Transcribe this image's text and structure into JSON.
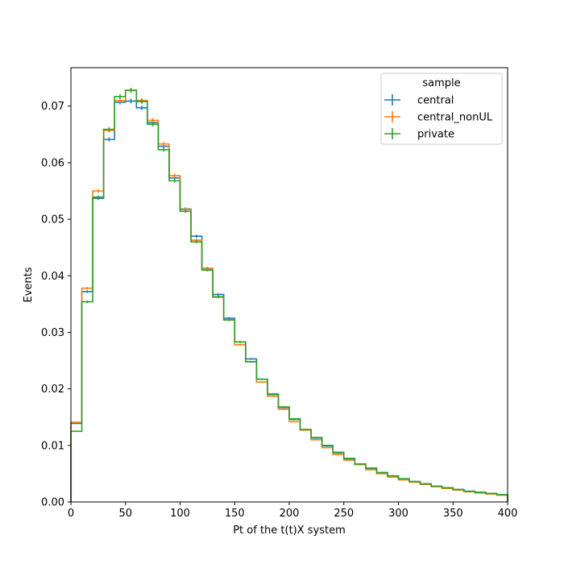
{
  "chart_data": {
    "type": "histogram-step",
    "xlabel": "Pt of the t(t)X system",
    "ylabel": "Events",
    "xlim": [
      0,
      400
    ],
    "ylim": [
      0,
      0.0768
    ],
    "xticks": [
      0,
      50,
      100,
      150,
      200,
      250,
      300,
      350,
      400
    ],
    "yticks": [
      0.0,
      0.01,
      0.02,
      0.03,
      0.04,
      0.05,
      0.06,
      0.07
    ],
    "ytick_labels": [
      "0.00",
      "0.01",
      "0.02",
      "0.03",
      "0.04",
      "0.05",
      "0.06",
      "0.07"
    ],
    "grid": false,
    "bin_edges": [
      0,
      10,
      20,
      30,
      40,
      50,
      60,
      70,
      80,
      90,
      100,
      110,
      120,
      130,
      140,
      150,
      160,
      170,
      180,
      190,
      200,
      210,
      220,
      230,
      240,
      250,
      260,
      270,
      280,
      290,
      300,
      310,
      320,
      330,
      340,
      350,
      360,
      370,
      380,
      390,
      400
    ],
    "legend": {
      "title": "sample",
      "position": "upper right"
    },
    "series": [
      {
        "name": "central",
        "color": "#1f77b4",
        "values": [
          0.0139,
          0.0372,
          0.0537,
          0.0641,
          0.0707,
          0.0709,
          0.0697,
          0.0671,
          0.0629,
          0.0573,
          0.0518,
          0.047,
          0.0413,
          0.0367,
          0.0325,
          0.0283,
          0.0253,
          0.0217,
          0.019,
          0.0167,
          0.0146,
          0.0128,
          0.0113,
          0.0099,
          0.0087,
          0.0076,
          0.0067,
          0.0059,
          0.0052,
          0.0046,
          0.004,
          0.0036,
          0.0032,
          0.0028,
          0.0025,
          0.0022,
          0.0019,
          0.0017,
          0.0015,
          0.0013
        ]
      },
      {
        "name": "central_nonUL",
        "color": "#ff7f0e",
        "values": [
          0.0141,
          0.0378,
          0.055,
          0.0657,
          0.071,
          0.0728,
          0.071,
          0.0675,
          0.0633,
          0.0577,
          0.0517,
          0.0463,
          0.0412,
          0.0362,
          0.0322,
          0.0278,
          0.0248,
          0.0212,
          0.0187,
          0.0164,
          0.0142,
          0.0127,
          0.011,
          0.0096,
          0.0084,
          0.0074,
          0.0066,
          0.0057,
          0.005,
          0.0044,
          0.0039,
          0.0035,
          0.0031,
          0.0027,
          0.0024,
          0.0021,
          0.0018,
          0.0016,
          0.0014,
          0.0012
        ]
      },
      {
        "name": "private",
        "color": "#2ca02c",
        "values": [
          0.0125,
          0.0354,
          0.0539,
          0.0659,
          0.0717,
          0.0728,
          0.0708,
          0.0668,
          0.0623,
          0.0568,
          0.0514,
          0.046,
          0.041,
          0.0363,
          0.0322,
          0.0283,
          0.0248,
          0.0217,
          0.0191,
          0.0168,
          0.0147,
          0.0128,
          0.0114,
          0.01,
          0.0088,
          0.0077,
          0.0067,
          0.006,
          0.0052,
          0.0046,
          0.0041,
          0.0036,
          0.0032,
          0.0028,
          0.0025,
          0.0022,
          0.0019,
          0.0017,
          0.0015,
          0.0013
        ]
      }
    ]
  }
}
